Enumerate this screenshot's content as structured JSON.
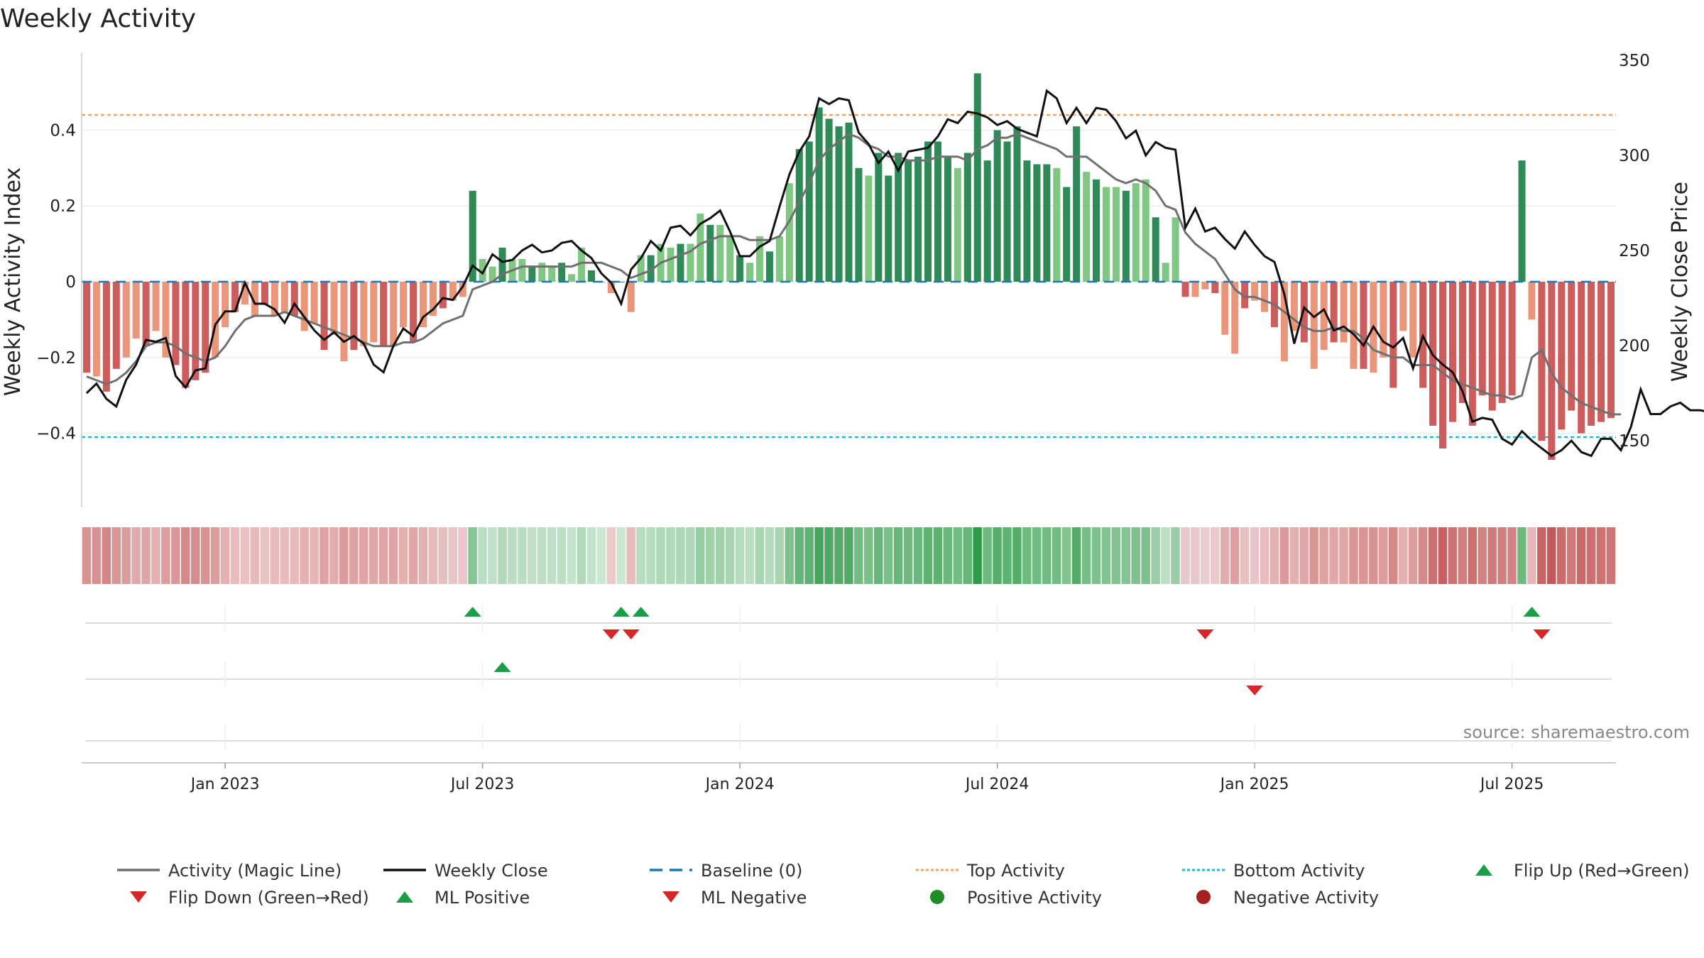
{
  "chart_data": {
    "type": "bar",
    "title": "Weekly Activity",
    "y_left_label": "Weekly Activity Index",
    "y_right_label": "Weekly Close Price",
    "y_left_ticks": [
      "0.4",
      "0.2",
      "0",
      "−0.2",
      "−0.4"
    ],
    "y_left_tick_values": [
      0.4,
      0.2,
      0,
      -0.2,
      -0.4
    ],
    "y_left_range": [
      -0.595,
      0.595
    ],
    "y_right_ticks": [
      "350",
      "300",
      "250",
      "200",
      "150"
    ],
    "y_right_tick_values": [
      350,
      300,
      250,
      200,
      150
    ],
    "y_right_range": [
      115,
      350
    ],
    "x_tick_labels": [
      "Jan 2023",
      "Jul 2023",
      "Jan 2024",
      "Jul 2024",
      "Jan 2025",
      "Jul 2025"
    ],
    "x_tick_weeks": [
      14,
      40,
      66,
      92,
      118,
      144
    ],
    "top_activity": 0.44,
    "bottom_activity": -0.41,
    "source": "source: sharemaestro.com",
    "colors": {
      "pos_strong": "#2e8b57",
      "pos_light": "#81c784",
      "neg_strong": "#cd5c5c",
      "neg_light": "#e9967a",
      "magic_line": "#707070",
      "close": "#111111",
      "baseline": "#1f77b4",
      "top": "#f4a460",
      "bottom": "#17becf",
      "marker_up": "#1a9e48",
      "marker_down": "#d62728"
    },
    "series": [
      {
        "name": "Weekly Activity Index",
        "values": [
          -0.24,
          -0.25,
          -0.29,
          -0.23,
          -0.2,
          -0.15,
          -0.17,
          -0.13,
          -0.2,
          -0.22,
          -0.28,
          -0.26,
          -0.24,
          -0.2,
          -0.12,
          -0.08,
          -0.06,
          -0.09,
          -0.06,
          -0.09,
          -0.08,
          -0.09,
          -0.13,
          -0.11,
          -0.18,
          -0.14,
          -0.21,
          -0.18,
          -0.17,
          -0.16,
          -0.17,
          -0.17,
          -0.12,
          -0.16,
          -0.12,
          -0.09,
          -0.07,
          -0.05,
          -0.04,
          0.24,
          0.06,
          0.04,
          0.09,
          0.06,
          0.06,
          0.04,
          0.05,
          0.04,
          0.05,
          0.02,
          0.09,
          0.03,
          0.0,
          -0.03,
          0.0,
          -0.08,
          0.07,
          0.07,
          0.1,
          0.09,
          0.1,
          0.1,
          0.18,
          0.15,
          0.15,
          0.12,
          0.07,
          0.05,
          0.12,
          0.08,
          0.12,
          0.26,
          0.35,
          0.37,
          0.46,
          0.43,
          0.41,
          0.42,
          0.3,
          0.28,
          0.34,
          0.28,
          0.34,
          0.32,
          0.33,
          0.37,
          0.37,
          0.33,
          0.3,
          0.34,
          0.55,
          0.32,
          0.4,
          0.37,
          0.41,
          0.32,
          0.31,
          0.31,
          0.3,
          0.25,
          0.41,
          0.29,
          0.27,
          0.25,
          0.25,
          0.24,
          0.26,
          0.27,
          0.17,
          0.05,
          0.17,
          -0.04,
          -0.04,
          -0.02,
          -0.03,
          -0.14,
          -0.19,
          -0.07,
          -0.05,
          -0.08,
          -0.12,
          -0.21,
          -0.13,
          -0.16,
          -0.23,
          -0.18,
          -0.16,
          -0.16,
          -0.23,
          -0.23,
          -0.24,
          -0.2,
          -0.28,
          -0.13,
          -0.2,
          -0.28,
          -0.38,
          -0.44,
          -0.37,
          -0.32,
          -0.38,
          -0.3,
          -0.34,
          -0.32,
          -0.3,
          0.32,
          -0.1,
          -0.42,
          -0.47,
          -0.39,
          -0.34,
          -0.4,
          -0.38,
          -0.37,
          -0.36
        ]
      },
      {
        "name": "Weekly Close",
        "values": [
          175,
          180,
          172,
          168,
          182,
          190,
          203,
          202,
          204,
          184,
          178,
          187,
          188,
          211,
          218,
          218,
          233,
          222,
          222,
          219,
          212,
          222,
          215,
          208,
          203,
          207,
          202,
          205,
          201,
          190,
          186,
          200,
          209,
          205,
          215,
          219,
          225,
          224,
          231,
          242,
          238,
          248,
          244,
          245,
          250,
          253,
          249,
          250,
          254,
          255,
          250,
          246,
          238,
          233,
          222,
          240,
          246,
          255,
          250,
          262,
          263,
          258,
          264,
          267,
          271,
          260,
          247,
          247,
          252,
          255,
          273,
          290,
          302,
          310,
          330,
          327,
          330,
          329,
          312,
          306,
          296,
          302,
          292,
          302,
          303,
          304,
          310,
          319,
          317,
          323,
          322,
          320,
          316,
          318,
          314,
          312,
          310,
          334,
          330,
          317,
          325,
          317,
          325,
          324,
          318,
          309,
          313,
          300,
          307,
          304,
          303,
          262,
          272,
          260,
          262,
          256,
          251,
          260,
          253,
          247,
          244,
          227,
          201,
          220,
          215,
          219,
          208,
          210,
          206,
          200,
          210,
          202,
          199,
          204,
          188,
          205,
          195,
          190,
          186,
          176,
          160,
          162,
          161,
          151,
          148,
          155,
          150,
          146,
          142,
          145,
          150,
          144,
          142,
          151,
          151,
          145,
          157,
          177,
          164,
          164,
          168,
          170,
          166,
          166,
          165
        ]
      },
      {
        "name": "Activity (Magic Line)",
        "values": [
          -0.25,
          -0.26,
          -0.27,
          -0.26,
          -0.24,
          -0.21,
          -0.17,
          -0.16,
          -0.16,
          -0.17,
          -0.19,
          -0.2,
          -0.21,
          -0.2,
          -0.17,
          -0.13,
          -0.1,
          -0.09,
          -0.09,
          -0.09,
          -0.08,
          -0.09,
          -0.1,
          -0.11,
          -0.12,
          -0.13,
          -0.14,
          -0.15,
          -0.16,
          -0.17,
          -0.17,
          -0.17,
          -0.16,
          -0.16,
          -0.15,
          -0.13,
          -0.11,
          -0.1,
          -0.09,
          -0.02,
          -0.01,
          0.0,
          0.02,
          0.03,
          0.04,
          0.04,
          0.04,
          0.04,
          0.04,
          0.04,
          0.05,
          0.05,
          0.05,
          0.04,
          0.03,
          0.01,
          0.02,
          0.03,
          0.05,
          0.06,
          0.07,
          0.08,
          0.1,
          0.11,
          0.12,
          0.12,
          0.12,
          0.11,
          0.11,
          0.11,
          0.12,
          0.16,
          0.21,
          0.26,
          0.32,
          0.35,
          0.37,
          0.39,
          0.38,
          0.36,
          0.35,
          0.33,
          0.33,
          0.32,
          0.32,
          0.32,
          0.33,
          0.33,
          0.33,
          0.32,
          0.35,
          0.36,
          0.38,
          0.38,
          0.39,
          0.38,
          0.37,
          0.36,
          0.35,
          0.33,
          0.33,
          0.33,
          0.31,
          0.29,
          0.27,
          0.26,
          0.27,
          0.26,
          0.24,
          0.2,
          0.19,
          0.13,
          0.1,
          0.08,
          0.06,
          0.02,
          -0.02,
          -0.04,
          -0.04,
          -0.05,
          -0.06,
          -0.08,
          -0.1,
          -0.12,
          -0.13,
          -0.13,
          -0.12,
          -0.13,
          -0.13,
          -0.15,
          -0.18,
          -0.19,
          -0.2,
          -0.2,
          -0.22,
          -0.22,
          -0.22,
          -0.24,
          -0.26,
          -0.27,
          -0.28,
          -0.29,
          -0.3,
          -0.3,
          -0.31,
          -0.3,
          -0.2,
          -0.18,
          -0.24,
          -0.28,
          -0.3,
          -0.32,
          -0.33,
          -0.34,
          -0.35,
          -0.35
        ]
      }
    ],
    "markers": {
      "flip_up_weeks": [
        39,
        54,
        56,
        146
      ],
      "flip_down_weeks": [
        53,
        55,
        113,
        147
      ],
      "ml_positive_weeks": [
        42
      ],
      "ml_negative_weeks": [
        118
      ]
    },
    "legend": [
      {
        "label": "Activity (Magic Line)",
        "symbol": "line",
        "color": "#707070"
      },
      {
        "label": "Weekly Close",
        "symbol": "line",
        "color": "#111111"
      },
      {
        "label": "Baseline (0)",
        "symbol": "dash",
        "color": "#1f77b4"
      },
      {
        "label": "Top Activity",
        "symbol": "dot",
        "color": "#f4a460"
      },
      {
        "label": "Bottom Activity",
        "symbol": "dot",
        "color": "#17becf"
      },
      {
        "label": "Flip Up (Red→Green)",
        "symbol": "tri-up",
        "color": "#1a9e48"
      },
      {
        "label": "Flip Down (Green→Red)",
        "symbol": "tri-down",
        "color": "#d62728"
      },
      {
        "label": "ML Positive",
        "symbol": "tri-up",
        "color": "#1a9e48"
      },
      {
        "label": "ML Negative",
        "symbol": "tri-down",
        "color": "#d62728"
      },
      {
        "label": "Positive Activity",
        "symbol": "circle",
        "color": "#1f8b24"
      },
      {
        "label": "Negative Activity",
        "symbol": "circle",
        "color": "#a52121"
      }
    ]
  }
}
